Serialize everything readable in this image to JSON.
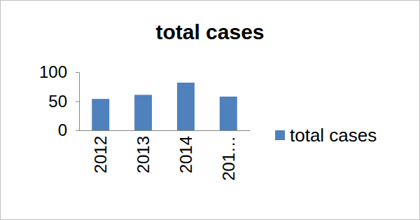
{
  "chart_data": {
    "type": "bar",
    "title": "total cases",
    "categories": [
      "2012",
      "2013",
      "2014",
      "201…"
    ],
    "series": [
      {
        "name": "total cases",
        "color": "#4f81bd",
        "values": [
          54,
          61,
          82,
          58
        ]
      }
    ],
    "ylim": [
      0,
      100
    ],
    "yticks": [
      0,
      50,
      100
    ],
    "legend": "right"
  }
}
